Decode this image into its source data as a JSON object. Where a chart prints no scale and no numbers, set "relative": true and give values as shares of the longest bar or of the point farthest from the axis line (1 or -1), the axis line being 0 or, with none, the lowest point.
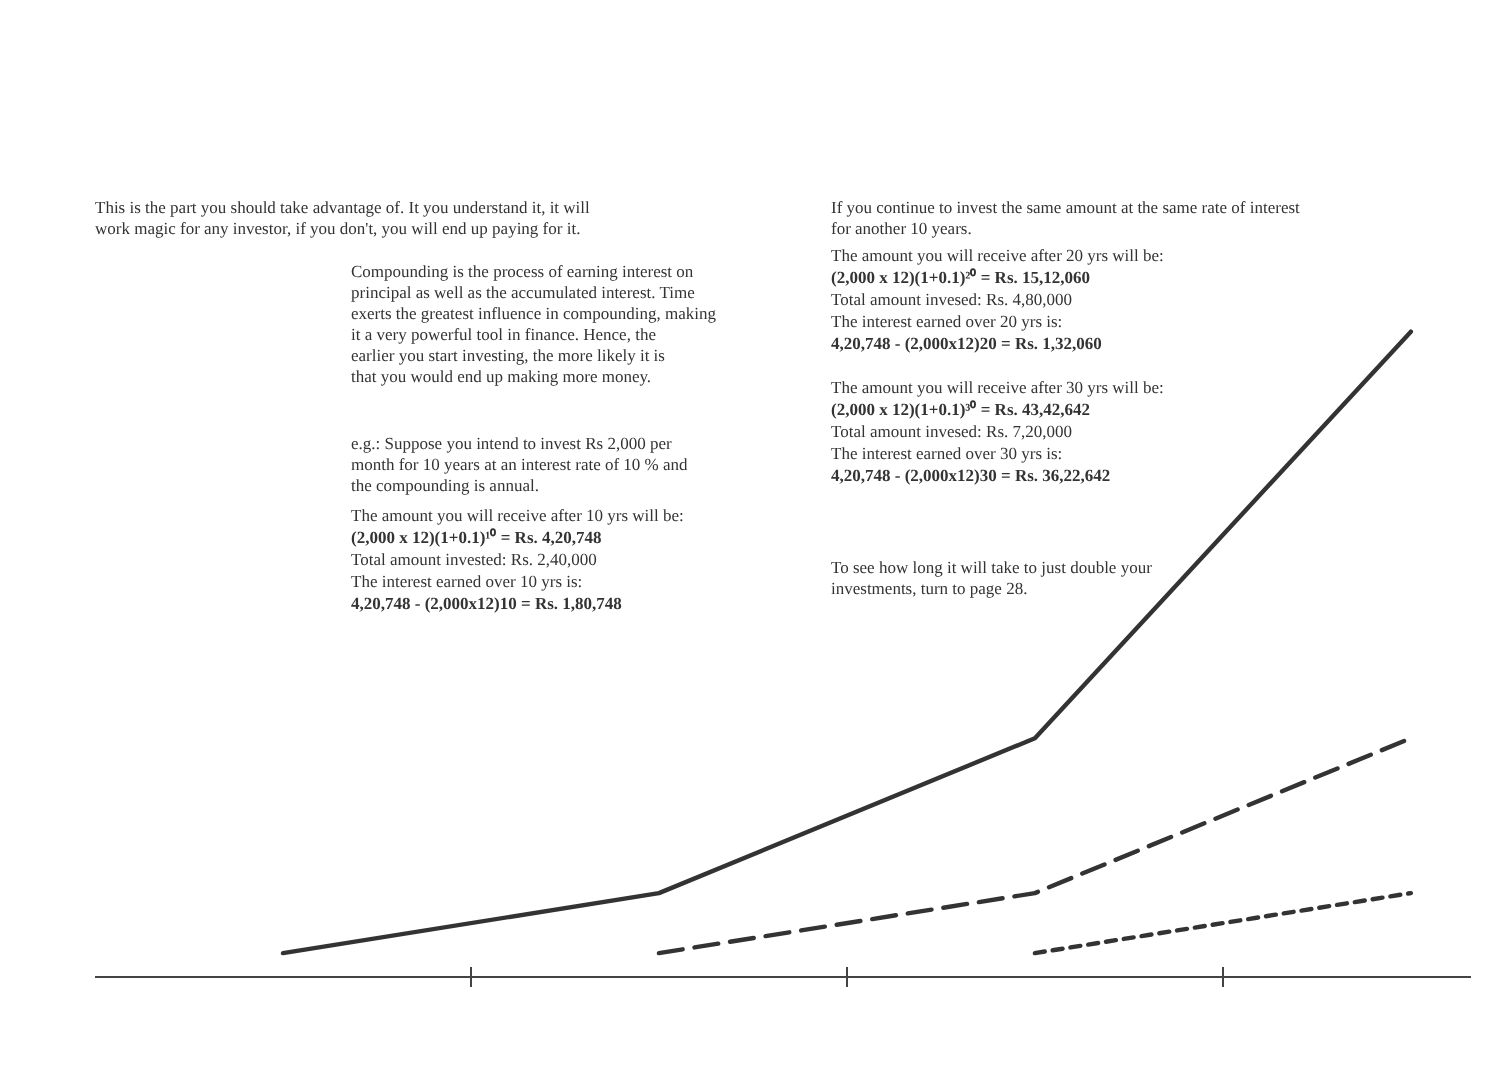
{
  "chart_data": {
    "type": "line",
    "relative": true,
    "grid": false,
    "categories": [
      null,
      null,
      null,
      null
    ],
    "series": [
      {
        "color": "#333333",
        "line_style": "solid",
        "values": [
          0.037,
          0.13,
          0.37,
          1.0
        ]
      },
      {
        "color": "#333333",
        "line_style": "dashed",
        "values": [
          null,
          0.037,
          0.13,
          0.37
        ]
      },
      {
        "color": "#333333",
        "line_style": "dotted",
        "values": [
          null,
          null,
          0.037,
          0.13
        ]
      }
    ],
    "annotations": [
      "This is the part you should take advantage of. It you understand it, it will work magic for any investor, if you don't, you will end up paying for it.",
      "Compounding is the process of earning interest on principal as well as the accumulated interest. Time exerts the greatest influence in compounding, making it a very powerful tool in finance. Hence, the earlier you start investing, the more likely it is that you would end up making more money.",
      "e.g.: Suppose you intend to invest Rs 2,000 per month for 10 years at an interest rate of 10 % and the compounding is annual.",
      "The amount you will receive after 10 yrs will be:",
      "(2,000 x 12)(1+0.1)¹⁰ =    Rs. 4,20,748",
      "Total amount invested:  Rs. 2,40,000",
      "The interest earned over 10 yrs is:",
      "4,20,748 - (2,000x12)10 = Rs. 1,80,748",
      "If you continue to invest the same amount at the same rate of interest for another 10 years.",
      "The amount you will receive after 20 yrs will be:",
      "(2,000 x 12)(1+0.1)²⁰ =    Rs. 15,12,060",
      "Total amount invesed:  Rs. 4,80,000",
      "The interest earned over 20 yrs is:",
      "4,20,748 - (2,000x12)20 = Rs. 1,32,060",
      "The amount you will receive after 30 yrs will be:",
      "(2,000 x 12)(1+0.1)³⁰ =    Rs. 43,42,642",
      "Total amount invesed:  Rs.  7,20,000",
      "The interest earned over 30 yrs is:",
      "4,20,748 - (2,000x12)30 = Rs. 36,22,642",
      "To see how long it will take to just double your investments, turn to page 28."
    ]
  }
}
